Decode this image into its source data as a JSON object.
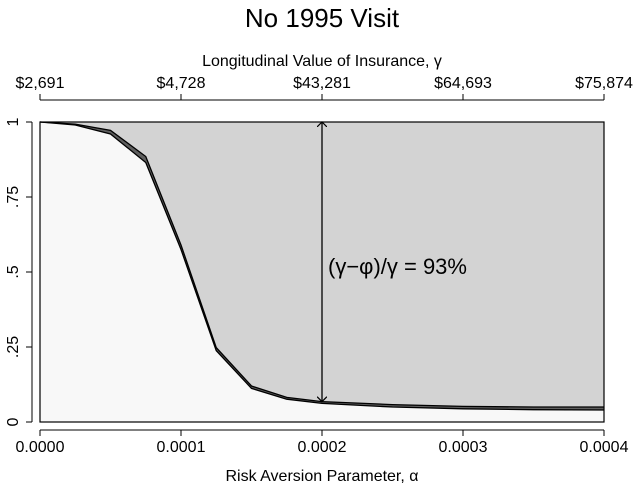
{
  "chart_data": {
    "type": "area",
    "title": "No 1995 Visit",
    "xlabel": "Risk Aversion Parameter, α",
    "x2label": "Longitudinal Value of Insurance, γ",
    "x": [
      0,
      2.5e-05,
      5e-05,
      7.5e-05,
      0.0001,
      0.000125,
      0.00015,
      0.000175,
      0.0002,
      0.00025,
      0.0003,
      0.00035,
      0.0004
    ],
    "series": [
      {
        "color": "#000000",
        "fill": "#5e5e5e",
        "values": [
          1,
          0.993,
          0.972,
          0.885,
          0.59,
          0.248,
          0.12,
          0.082,
          0.068,
          0.058,
          0.052,
          0.05,
          0.05
        ]
      },
      {
        "color": "#000000",
        "fill": "#f8f8f8",
        "values": [
          1,
          0.99,
          0.96,
          0.865,
          0.575,
          0.238,
          0.112,
          0.076,
          0.062,
          0.05,
          0.044,
          0.041,
          0.04
        ]
      }
    ],
    "background": "#d3d3d3",
    "xlim": [
      0,
      0.0004
    ],
    "ylim": [
      0,
      1
    ],
    "xticks": [
      {
        "value": 0,
        "label": "0.0000"
      },
      {
        "value": 0.0001,
        "label": "0.0001"
      },
      {
        "value": 0.0002,
        "label": "0.0002"
      },
      {
        "value": 0.0003,
        "label": "0.0003"
      },
      {
        "value": 0.0004,
        "label": "0.0004"
      }
    ],
    "x2ticks": [
      {
        "value": 0,
        "label": "$2,691"
      },
      {
        "value": 0.0001,
        "label": "$4,728"
      },
      {
        "value": 0.0002,
        "label": "$43,281"
      },
      {
        "value": 0.0003,
        "label": "$64,693"
      },
      {
        "value": 0.0004,
        "label": "$75,874"
      }
    ],
    "yticks": [
      0,
      {
        "value": 0.25,
        "label": ".25"
      },
      {
        "value": 0.5,
        "label": ".5"
      },
      {
        "value": 0.75,
        "label": ".75"
      },
      1
    ],
    "annotation": {
      "text": "(γ−φ)/γ = 93%",
      "x": 0.0002,
      "y_from": 0.068,
      "y_to": 1
    }
  }
}
